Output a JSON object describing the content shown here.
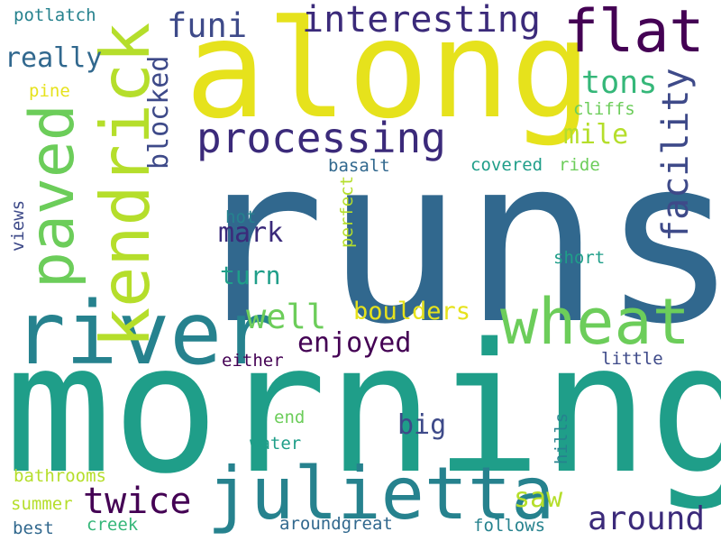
{
  "background": "#ffffff",
  "palette": {
    "dark_purple": "#440154",
    "indigo": "#3b2a7a",
    "slate_blue": "#3e4a89",
    "steel_blue": "#31688e",
    "teal_blue": "#26828e",
    "teal": "#1f9e89",
    "green_teal": "#35b779",
    "green": "#6ccd5a",
    "lime": "#b5de2b",
    "yellow": "#e6e21c"
  },
  "words": [
    {
      "text": "runs",
      "color": "#31688e",
      "vertical": false
    },
    {
      "text": "morning",
      "color": "#1f9e89",
      "vertical": false
    },
    {
      "text": "along",
      "color": "#e6e21c",
      "vertical": false
    },
    {
      "text": "river",
      "color": "#26828e",
      "vertical": false
    },
    {
      "text": "julietta",
      "color": "#26828e",
      "vertical": false
    },
    {
      "text": "wheat",
      "color": "#6ccd5a",
      "vertical": false
    },
    {
      "text": "flat",
      "color": "#440154",
      "vertical": false
    },
    {
      "text": "kendrick",
      "color": "#b5de2b",
      "vertical": true
    },
    {
      "text": "paved",
      "color": "#6ccd5a",
      "vertical": true
    },
    {
      "text": "processing",
      "color": "#3b2a7a",
      "vertical": false
    },
    {
      "text": "facility",
      "color": "#3e4a89",
      "vertical": true
    },
    {
      "text": "interesting",
      "color": "#3b2a7a",
      "vertical": false
    },
    {
      "text": "twice",
      "color": "#440154",
      "vertical": false
    },
    {
      "text": "around",
      "color": "#3b2a7a",
      "vertical": false
    },
    {
      "text": "funi",
      "color": "#3e4a89",
      "vertical": false
    },
    {
      "text": "mark",
      "color": "#3b2a7a",
      "vertical": false
    },
    {
      "text": "blocked",
      "color": "#3e4a89",
      "vertical": true
    },
    {
      "text": "really",
      "color": "#31688e",
      "vertical": false
    },
    {
      "text": "tons",
      "color": "#35b779",
      "vertical": false
    },
    {
      "text": "mile",
      "color": "#b5de2b",
      "vertical": false
    },
    {
      "text": "well",
      "color": "#6ccd5a",
      "vertical": false
    },
    {
      "text": "boulders",
      "color": "#e6e21c",
      "vertical": false
    },
    {
      "text": "enjoyed",
      "color": "#440154",
      "vertical": false
    },
    {
      "text": "saw",
      "color": "#b5de2b",
      "vertical": false
    },
    {
      "text": "big",
      "color": "#3e4a89",
      "vertical": false
    },
    {
      "text": "turn",
      "color": "#1f9e89",
      "vertical": false
    },
    {
      "text": "potlatch",
      "color": "#26828e",
      "vertical": false
    },
    {
      "text": "pine",
      "color": "#e6e21c",
      "vertical": false
    },
    {
      "text": "cliffs",
      "color": "#6ccd5a",
      "vertical": false
    },
    {
      "text": "covered",
      "color": "#1f9e89",
      "vertical": false
    },
    {
      "text": "ride",
      "color": "#6ccd5a",
      "vertical": false
    },
    {
      "text": "basalt",
      "color": "#31688e",
      "vertical": false
    },
    {
      "text": "hot",
      "color": "#26828e",
      "vertical": false
    },
    {
      "text": "perfect",
      "color": "#b5de2b",
      "vertical": true
    },
    {
      "text": "views",
      "color": "#3e4a89",
      "vertical": true
    },
    {
      "text": "short",
      "color": "#1f9e89",
      "vertical": false
    },
    {
      "text": "either",
      "color": "#440154",
      "vertical": false
    },
    {
      "text": "little",
      "color": "#3e4a89",
      "vertical": false
    },
    {
      "text": "end",
      "color": "#6ccd5a",
      "vertical": false
    },
    {
      "text": "water",
      "color": "#1f9e89",
      "vertical": false
    },
    {
      "text": "hills",
      "color": "#26828e",
      "vertical": true
    },
    {
      "text": "bathrooms",
      "color": "#b5de2b",
      "vertical": false
    },
    {
      "text": "summer",
      "color": "#b5de2b",
      "vertical": false
    },
    {
      "text": "best",
      "color": "#31688e",
      "vertical": false
    },
    {
      "text": "creek",
      "color": "#35b779",
      "vertical": false
    },
    {
      "text": "aroundgreat",
      "color": "#31688e",
      "vertical": false
    },
    {
      "text": "follows",
      "color": "#26828e",
      "vertical": false
    }
  ]
}
